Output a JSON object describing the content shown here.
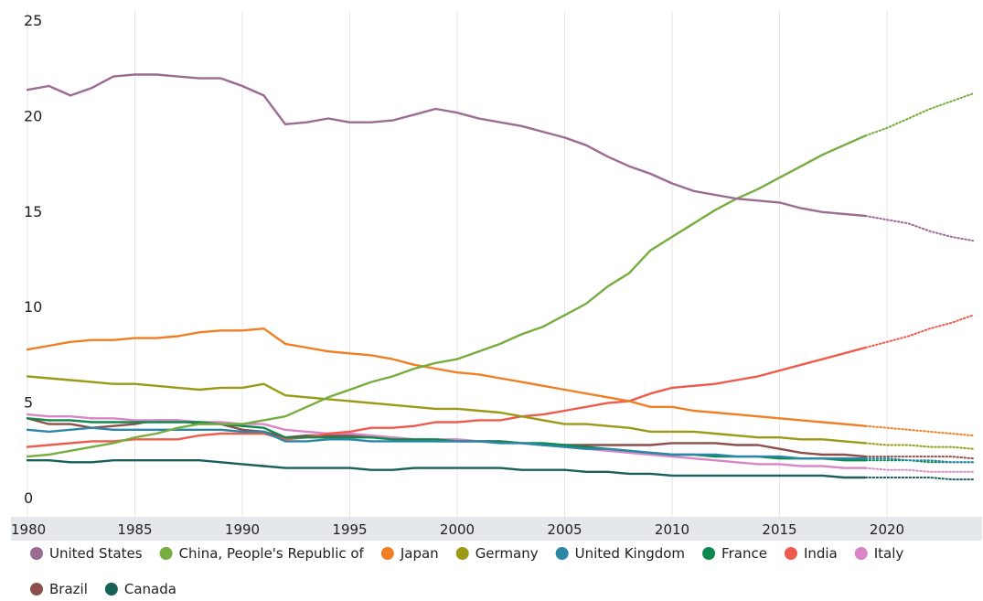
{
  "chart_data": {
    "type": "line",
    "title": "",
    "xlabel": "",
    "ylabel": "",
    "xlim": [
      1980,
      2024
    ],
    "ylim": [
      0,
      25
    ],
    "grid": "vertical",
    "legend_position": "bottom",
    "forecast_start": 2019,
    "y_ticks": [
      "0",
      "5",
      "10",
      "15",
      "20",
      "25"
    ],
    "x_ticks": [
      "1980",
      "1985",
      "1990",
      "1995",
      "2000",
      "2005",
      "2010",
      "2015",
      "2020"
    ],
    "x": [
      1980,
      1981,
      1982,
      1983,
      1984,
      1985,
      1986,
      1987,
      1988,
      1989,
      1990,
      1991,
      1992,
      1993,
      1994,
      1995,
      1996,
      1997,
      1998,
      1999,
      2000,
      2001,
      2002,
      2003,
      2004,
      2005,
      2006,
      2007,
      2008,
      2009,
      2010,
      2011,
      2012,
      2013,
      2014,
      2015,
      2016,
      2017,
      2018,
      2019,
      2020,
      2021,
      2022,
      2023,
      2024
    ],
    "series": [
      {
        "name": "United States",
        "color": "#9b6b93",
        "values": [
          21.4,
          21.6,
          21.1,
          21.5,
          22.1,
          22.2,
          22.2,
          22.1,
          22.0,
          22.0,
          21.6,
          21.1,
          19.6,
          19.7,
          19.9,
          19.7,
          19.7,
          19.8,
          20.1,
          20.4,
          20.2,
          19.9,
          19.7,
          19.5,
          19.2,
          18.9,
          18.5,
          17.9,
          17.4,
          17.0,
          16.5,
          16.1,
          15.9,
          15.7,
          15.6,
          15.5,
          15.2,
          15.0,
          14.9,
          14.8,
          14.6,
          14.4,
          14.0,
          13.7,
          13.5
        ]
      },
      {
        "name": "China, People's Republic of",
        "color": "#76ad3f",
        "values": [
          2.2,
          2.3,
          2.5,
          2.7,
          2.9,
          3.2,
          3.4,
          3.7,
          3.9,
          3.9,
          3.9,
          4.1,
          4.3,
          4.8,
          5.3,
          5.7,
          6.1,
          6.4,
          6.8,
          7.1,
          7.3,
          7.7,
          8.1,
          8.6,
          9.0,
          9.6,
          10.2,
          11.1,
          11.8,
          13.0,
          13.7,
          14.4,
          15.1,
          15.7,
          16.2,
          16.8,
          17.4,
          18.0,
          18.5,
          19.0,
          19.4,
          19.9,
          20.4,
          20.8,
          21.2
        ]
      },
      {
        "name": "Japan",
        "color": "#f07f24",
        "values": [
          7.8,
          8.0,
          8.2,
          8.3,
          8.3,
          8.4,
          8.4,
          8.5,
          8.7,
          8.8,
          8.8,
          8.9,
          8.1,
          7.9,
          7.7,
          7.6,
          7.5,
          7.3,
          7.0,
          6.8,
          6.6,
          6.5,
          6.3,
          6.1,
          5.9,
          5.7,
          5.5,
          5.3,
          5.1,
          4.8,
          4.8,
          4.6,
          4.5,
          4.4,
          4.3,
          4.2,
          4.1,
          4.0,
          3.9,
          3.8,
          3.7,
          3.6,
          3.5,
          3.4,
          3.3
        ]
      },
      {
        "name": "Germany",
        "color": "#9a9a16",
        "values": [
          6.4,
          6.3,
          6.2,
          6.1,
          6.0,
          6.0,
          5.9,
          5.8,
          5.7,
          5.8,
          5.8,
          6.0,
          5.4,
          5.3,
          5.2,
          5.1,
          5.0,
          4.9,
          4.8,
          4.7,
          4.7,
          4.6,
          4.5,
          4.3,
          4.1,
          3.9,
          3.9,
          3.8,
          3.7,
          3.5,
          3.5,
          3.5,
          3.4,
          3.3,
          3.2,
          3.2,
          3.1,
          3.1,
          3.0,
          2.9,
          2.8,
          2.8,
          2.7,
          2.7,
          2.6
        ]
      },
      {
        "name": "United Kingdom",
        "color": "#2c86a6",
        "values": [
          3.6,
          3.5,
          3.6,
          3.7,
          3.6,
          3.6,
          3.6,
          3.6,
          3.6,
          3.6,
          3.5,
          3.5,
          3.0,
          3.0,
          3.1,
          3.1,
          3.0,
          3.0,
          3.0,
          3.0,
          3.0,
          3.0,
          2.9,
          2.9,
          2.8,
          2.7,
          2.6,
          2.6,
          2.5,
          2.4,
          2.3,
          2.3,
          2.3,
          2.2,
          2.2,
          2.2,
          2.1,
          2.1,
          2.1,
          2.1,
          2.1,
          2.0,
          2.0,
          1.9,
          1.9
        ]
      },
      {
        "name": "France",
        "color": "#0f8a4f",
        "values": [
          4.2,
          4.1,
          4.1,
          4.0,
          4.0,
          4.0,
          4.0,
          4.0,
          4.0,
          3.9,
          3.8,
          3.7,
          3.2,
          3.2,
          3.2,
          3.2,
          3.2,
          3.1,
          3.1,
          3.1,
          3.0,
          3.0,
          3.0,
          2.9,
          2.9,
          2.8,
          2.7,
          2.6,
          2.5,
          2.4,
          2.3,
          2.3,
          2.2,
          2.2,
          2.2,
          2.1,
          2.1,
          2.1,
          2.0,
          2.0,
          2.0,
          2.0,
          1.9,
          1.9,
          1.9
        ]
      },
      {
        "name": "India",
        "color": "#ee5b4d",
        "values": [
          2.7,
          2.8,
          2.9,
          3.0,
          3.0,
          3.1,
          3.1,
          3.1,
          3.3,
          3.4,
          3.4,
          3.4,
          3.1,
          3.2,
          3.4,
          3.5,
          3.7,
          3.7,
          3.8,
          4.0,
          4.0,
          4.1,
          4.1,
          4.3,
          4.4,
          4.6,
          4.8,
          5.0,
          5.1,
          5.5,
          5.8,
          5.9,
          6.0,
          6.2,
          6.4,
          6.7,
          7.0,
          7.3,
          7.6,
          7.9,
          8.2,
          8.5,
          8.9,
          9.2,
          9.6
        ]
      },
      {
        "name": "Italy",
        "color": "#d986c6",
        "values": [
          4.4,
          4.3,
          4.3,
          4.2,
          4.2,
          4.1,
          4.1,
          4.1,
          4.0,
          4.0,
          3.9,
          3.9,
          3.6,
          3.5,
          3.4,
          3.4,
          3.3,
          3.2,
          3.1,
          3.1,
          3.1,
          3.0,
          3.0,
          2.9,
          2.8,
          2.7,
          2.6,
          2.5,
          2.4,
          2.3,
          2.2,
          2.1,
          2.0,
          1.9,
          1.8,
          1.8,
          1.7,
          1.7,
          1.6,
          1.6,
          1.5,
          1.5,
          1.4,
          1.4,
          1.4
        ]
      },
      {
        "name": "Brazil",
        "color": "#8d4f4b",
        "values": [
          4.2,
          3.9,
          3.9,
          3.7,
          3.8,
          3.9,
          4.1,
          4.1,
          3.9,
          3.9,
          3.6,
          3.5,
          3.2,
          3.3,
          3.3,
          3.3,
          3.2,
          3.2,
          3.1,
          3.0,
          3.0,
          3.0,
          3.0,
          2.9,
          2.8,
          2.8,
          2.8,
          2.8,
          2.8,
          2.8,
          2.9,
          2.9,
          2.9,
          2.8,
          2.8,
          2.6,
          2.4,
          2.3,
          2.3,
          2.2,
          2.2,
          2.2,
          2.2,
          2.2,
          2.1
        ]
      },
      {
        "name": "Canada",
        "color": "#176158",
        "values": [
          2.0,
          2.0,
          1.9,
          1.9,
          2.0,
          2.0,
          2.0,
          2.0,
          2.0,
          1.9,
          1.8,
          1.7,
          1.6,
          1.6,
          1.6,
          1.6,
          1.5,
          1.5,
          1.6,
          1.6,
          1.6,
          1.6,
          1.6,
          1.5,
          1.5,
          1.5,
          1.4,
          1.4,
          1.3,
          1.3,
          1.2,
          1.2,
          1.2,
          1.2,
          1.2,
          1.2,
          1.2,
          1.2,
          1.1,
          1.1,
          1.1,
          1.1,
          1.1,
          1.0,
          1.0
        ]
      }
    ]
  }
}
